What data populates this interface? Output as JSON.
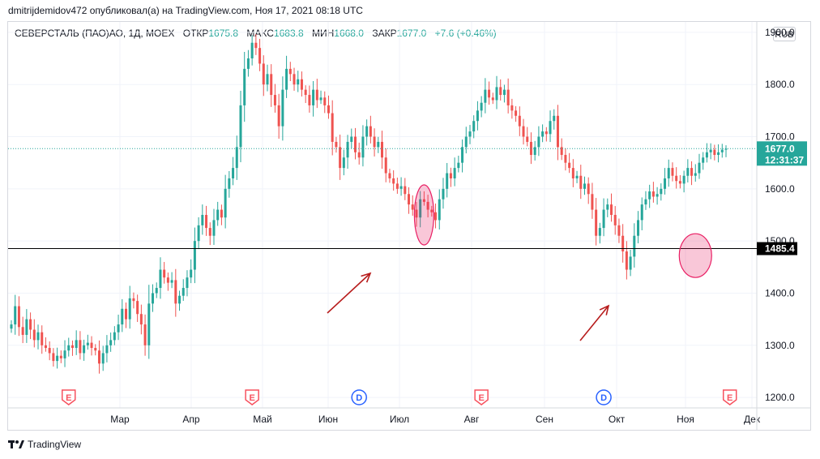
{
  "header": {
    "published_line": "dmitrijdemidov472 опубликовал(а) на TradingView.com, Ноя 17, 2021 08:18 UTC"
  },
  "legend": {
    "symbol": "СЕВЕРСТАЛЬ (ПАО)АО, 1Д, MOEX",
    "open_label": "ОТКР",
    "open_value": "1675.8",
    "high_label": "МАКС",
    "high_value": "1683.8",
    "low_label": "МИН",
    "low_value": "1668.0",
    "close_label": "ЗАКР",
    "close_value": "1677.0",
    "change": "+7.6 (+0.46%)"
  },
  "currency_button": "RUB",
  "footer": {
    "brand": "TradingView",
    "logo": "tradingview-logo-icon"
  },
  "colors": {
    "up": "#26a69a",
    "down": "#ef5350",
    "grid": "#f0f3fa",
    "price_line": "#26a69a",
    "level_line": "#000000",
    "ellipse": "#e91e63",
    "arrow": "#b71c1c",
    "event_e": "#f7525f",
    "event_d": "#2962ff"
  },
  "chart_data": {
    "type": "candlestick",
    "symbol": "СЕВЕРСТАЛЬ (ПАО)АО",
    "timeframe": "1Д",
    "exchange": "MOEX",
    "ylim": [
      1180,
      1920
    ],
    "y_ticks": [
      "1200.0",
      "1300.0",
      "1400.0",
      "1500.0",
      "1600.0",
      "1700.0",
      "1800.0",
      "1900.0"
    ],
    "x_ticks": [
      "Мар",
      "Апр",
      "Май",
      "Июн",
      "Июл",
      "Авг",
      "Сен",
      "Окт",
      "Ноя",
      "Дек"
    ],
    "current_price": {
      "value": 1677.0,
      "label": "1677.0",
      "countdown": "12:31:37"
    },
    "horizontal_level": {
      "value": 1485.4,
      "label": "1485.4"
    },
    "highlights": [
      {
        "type": "ellipse",
        "center_index": 108,
        "price_center": 1550
      },
      {
        "type": "ellipse",
        "center_index": 179,
        "price_center": 1472
      }
    ],
    "events": [
      {
        "type": "E",
        "index": 15
      },
      {
        "type": "E",
        "index": 63
      },
      {
        "type": "D",
        "index": 91
      },
      {
        "type": "E",
        "index": 123
      },
      {
        "type": "D",
        "index": 155
      },
      {
        "type": "E",
        "index": 188
      }
    ],
    "closes": [
      1340,
      1375,
      1335,
      1320,
      1350,
      1330,
      1310,
      1325,
      1300,
      1295,
      1285,
      1270,
      1280,
      1275,
      1290,
      1300,
      1295,
      1310,
      1285,
      1300,
      1305,
      1295,
      1290,
      1265,
      1285,
      1300,
      1310,
      1325,
      1340,
      1370,
      1350,
      1390,
      1385,
      1360,
      1340,
      1300,
      1380,
      1400,
      1410,
      1445,
      1430,
      1420,
      1425,
      1380,
      1395,
      1410,
      1430,
      1445,
      1500,
      1530,
      1550,
      1525,
      1510,
      1540,
      1560,
      1545,
      1600,
      1620,
      1640,
      1680,
      1760,
      1830,
      1850,
      1880,
      1870,
      1840,
      1800,
      1820,
      1780,
      1760,
      1720,
      1790,
      1830,
      1820,
      1800,
      1810,
      1790,
      1780,
      1760,
      1790,
      1770,
      1775,
      1760,
      1745,
      1690,
      1680,
      1640,
      1660,
      1690,
      1700,
      1670,
      1660,
      1700,
      1720,
      1700,
      1680,
      1690,
      1660,
      1630,
      1620,
      1610,
      1600,
      1605,
      1590,
      1570,
      1560,
      1545,
      1580,
      1575,
      1560,
      1555,
      1540,
      1580,
      1600,
      1630,
      1620,
      1640,
      1650,
      1680,
      1700,
      1710,
      1730,
      1750,
      1765,
      1790,
      1775,
      1770,
      1795,
      1780,
      1790,
      1760,
      1750,
      1740,
      1720,
      1700,
      1690,
      1665,
      1680,
      1700,
      1710,
      1705,
      1730,
      1740,
      1680,
      1665,
      1650,
      1640,
      1620,
      1625,
      1600,
      1610,
      1590,
      1560,
      1510,
      1525,
      1560,
      1570,
      1550,
      1530,
      1510,
      1480,
      1445,
      1470,
      1510,
      1540,
      1570,
      1580,
      1595,
      1585,
      1590,
      1600,
      1620,
      1640,
      1625,
      1615,
      1610,
      1625,
      1640,
      1625,
      1630,
      1650,
      1660,
      1670,
      1675,
      1665,
      1670,
      1675,
      1677
    ]
  }
}
